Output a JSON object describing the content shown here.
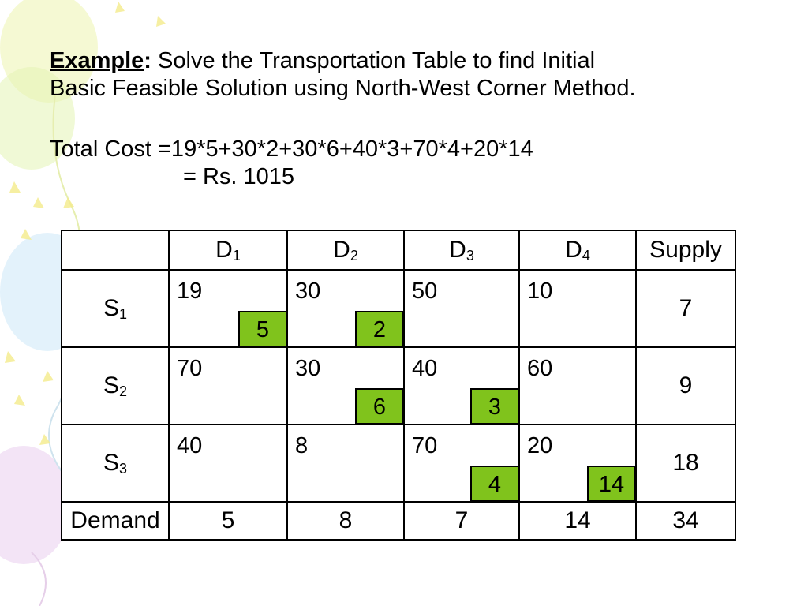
{
  "heading": {
    "label": "Example",
    "colon": ":",
    "text_line1": " Solve the Transportation Table to find Initial",
    "text_line2": "Basic Feasible Solution using North-West Corner Method."
  },
  "total_cost": {
    "line1": "Total Cost =19*5+30*2+30*6+40*3+70*4+20*14",
    "line2": "= Rs. 1015"
  },
  "table": {
    "destinations": [
      {
        "letter": "D",
        "sub": "1"
      },
      {
        "letter": "D",
        "sub": "2"
      },
      {
        "letter": "D",
        "sub": "3"
      },
      {
        "letter": "D",
        "sub": "4"
      }
    ],
    "supply_header": "Supply",
    "rows": [
      {
        "letter": "S",
        "sub": "1",
        "costs": [
          "19",
          "30",
          "50",
          "10"
        ],
        "allocations": [
          "5",
          "2",
          "",
          ""
        ],
        "supply": "7"
      },
      {
        "letter": "S",
        "sub": "2",
        "costs": [
          "70",
          "30",
          "40",
          "60"
        ],
        "allocations": [
          "",
          "6",
          "3",
          ""
        ],
        "supply": "9"
      },
      {
        "letter": "S",
        "sub": "3",
        "costs": [
          "40",
          "8",
          "70",
          "20"
        ],
        "allocations": [
          "",
          "",
          "4",
          "14"
        ],
        "supply": "18"
      }
    ],
    "demand_label": "Demand",
    "demand": [
      "5",
      "8",
      "7",
      "14"
    ],
    "total": "34"
  },
  "colors": {
    "allocation_fill": "#80c31c"
  }
}
